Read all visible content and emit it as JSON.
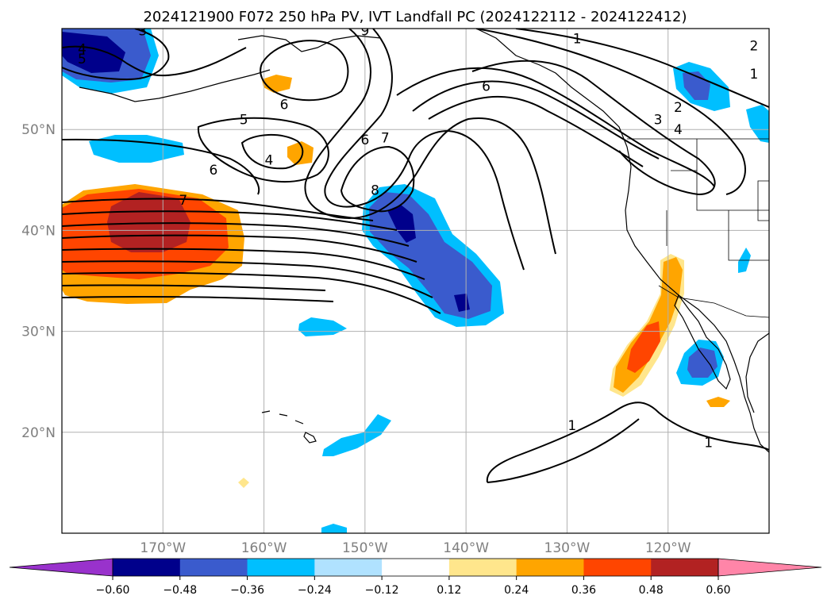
{
  "title": "2024121900 F072 250 hPa PV, IVT Landfall PC (2024122112 - 2024122412)",
  "map": {
    "lon_range": [
      -180,
      -110
    ],
    "lat_range": [
      10,
      60
    ],
    "lat_ticks": [
      {
        "value": 20,
        "label": "20°N"
      },
      {
        "value": 30,
        "label": "30°N"
      },
      {
        "value": 40,
        "label": "40°N"
      },
      {
        "value": 50,
        "label": "50°N"
      }
    ],
    "lon_ticks": [
      {
        "value": -170,
        "label": "170°W"
      },
      {
        "value": -160,
        "label": "160°W"
      },
      {
        "value": -150,
        "label": "150°W"
      },
      {
        "value": -140,
        "label": "140°W"
      },
      {
        "value": -130,
        "label": "130°W"
      },
      {
        "value": -120,
        "label": "120°W"
      }
    ],
    "contour_labels": [
      {
        "text": "5",
        "lon": -178.0,
        "lat": 57.0
      },
      {
        "text": "4",
        "lon": -178.0,
        "lat": 58.0
      },
      {
        "text": "3",
        "lon": -172.0,
        "lat": 59.8
      },
      {
        "text": "9",
        "lon": -150.0,
        "lat": 59.8
      },
      {
        "text": "6",
        "lon": -158.0,
        "lat": 52.5
      },
      {
        "text": "5",
        "lon": -162.0,
        "lat": 51.0
      },
      {
        "text": "4",
        "lon": -159.5,
        "lat": 47.0
      },
      {
        "text": "6",
        "lon": -165.0,
        "lat": 46.0
      },
      {
        "text": "7",
        "lon": -168.0,
        "lat": 43.0
      },
      {
        "text": "6",
        "lon": -150.0,
        "lat": 49.0
      },
      {
        "text": "7",
        "lon": -148.0,
        "lat": 49.2
      },
      {
        "text": "8",
        "lon": -149.0,
        "lat": 44.0
      },
      {
        "text": "6",
        "lon": -138.0,
        "lat": 54.3
      },
      {
        "text": "1",
        "lon": -129.0,
        "lat": 59.0
      },
      {
        "text": "2",
        "lon": -111.5,
        "lat": 58.3
      },
      {
        "text": "1",
        "lon": -111.5,
        "lat": 55.5
      },
      {
        "text": "2",
        "lon": -119.0,
        "lat": 52.2
      },
      {
        "text": "3",
        "lon": -121.0,
        "lat": 51.0
      },
      {
        "text": "4",
        "lon": -119.0,
        "lat": 50.0
      },
      {
        "text": "1",
        "lon": -129.5,
        "lat": 20.7
      },
      {
        "text": "1",
        "lon": -116.0,
        "lat": 19.0
      }
    ]
  },
  "colorbar": {
    "levels": [
      -0.6,
      -0.48,
      -0.36,
      -0.24,
      -0.12,
      0.12,
      0.24,
      0.36,
      0.48,
      0.6
    ],
    "labels": [
      "−0.60",
      "−0.48",
      "−0.36",
      "−0.24",
      "−0.12",
      "0.12",
      "0.24",
      "0.36",
      "0.48",
      "0.60"
    ],
    "colors": [
      "#9932cc",
      "#00008b",
      "#3a5bcd",
      "#00bfff",
      "#b0e2ff",
      "#ffffff",
      "#ffe68c",
      "#ffa500",
      "#ff4500",
      "#b22222",
      "#ff85a8"
    ]
  }
}
